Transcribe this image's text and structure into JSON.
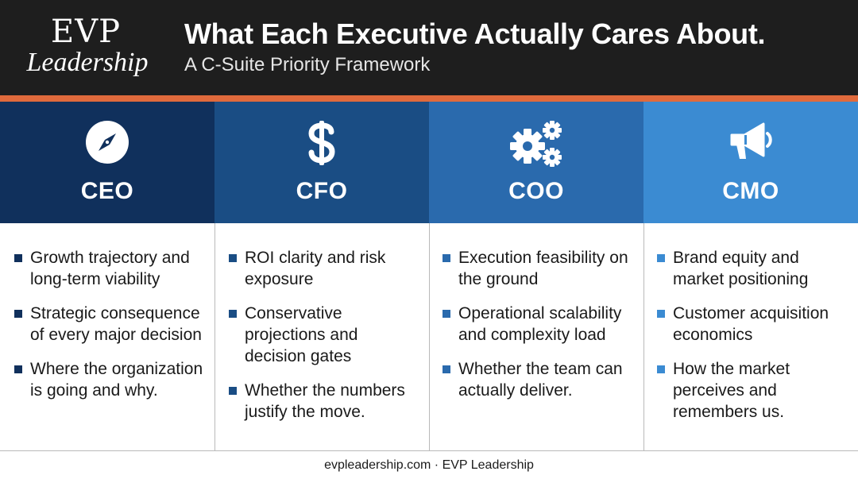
{
  "header": {
    "logo_top": "EVP",
    "logo_bottom": "Leadership",
    "title": "What Each Executive Actually Cares About.",
    "subtitle": "A C-Suite Priority Framework"
  },
  "colors": {
    "header_bg": "#1e1e1e",
    "accent": "#e06a3c",
    "ceo": "#10305c",
    "cfo": "#1a4d84",
    "coo": "#2a6aad",
    "cmo": "#3b8bd2"
  },
  "columns": [
    {
      "role": "CEO",
      "icon": "compass-icon",
      "items": [
        "Growth trajectory and long-term viability",
        "Strategic consequence of every major decision",
        "Where the organization is going and why."
      ]
    },
    {
      "role": "CFO",
      "icon": "dollar-icon",
      "items": [
        "ROI clarity and risk exposure",
        "Conservative projections and decision gates",
        "Whether the numbers justify the move."
      ]
    },
    {
      "role": "COO",
      "icon": "gears-icon",
      "items": [
        "Execution feasibility on the ground",
        "Operational scalability and complexity load",
        "Whether the team can actually deliver."
      ]
    },
    {
      "role": "CMO",
      "icon": "megaphone-icon",
      "items": [
        "Brand equity and market positioning",
        "Customer acquisition economics",
        "How the market perceives and remembers us."
      ]
    }
  ],
  "footer": {
    "text": "evpleadership.com · EVP Leadership"
  }
}
